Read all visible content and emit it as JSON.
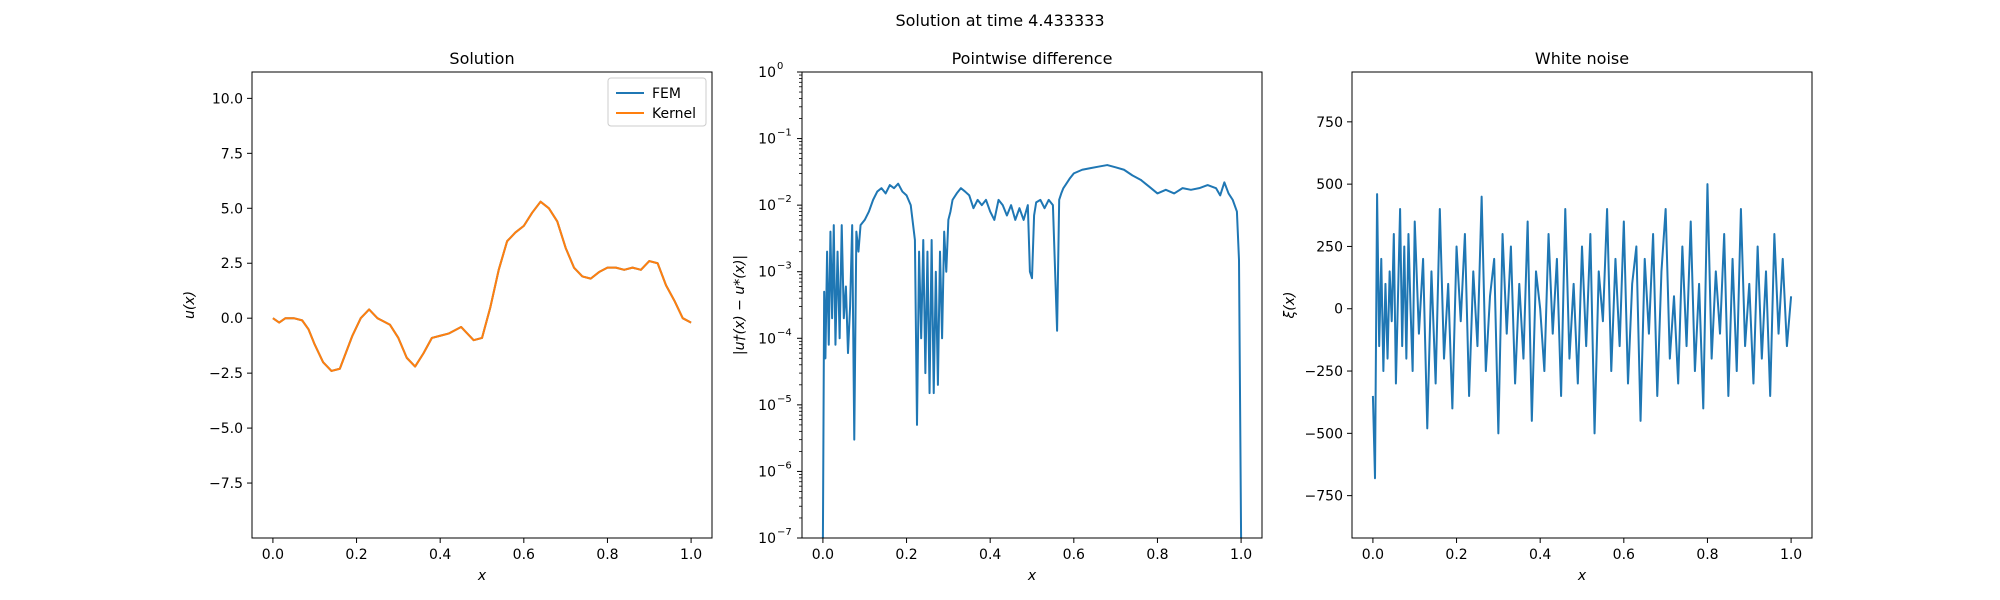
{
  "figure": {
    "suptitle": "Solution at time 4.433333"
  },
  "chart_data": [
    {
      "type": "line",
      "title": "Solution",
      "xlabel": "x",
      "ylabel": "u(x)",
      "xlim": [
        -0.05,
        1.05
      ],
      "ylim": [
        -10.0,
        11.2
      ],
      "xticks": [
        "0.0",
        "0.2",
        "0.4",
        "0.6",
        "0.8",
        "1.0"
      ],
      "xtick_values": [
        0,
        0.2,
        0.4,
        0.6,
        0.8,
        1.0
      ],
      "yticks": [
        "−7.5",
        "−5.0",
        "−2.5",
        "0.0",
        "2.5",
        "5.0",
        "7.5",
        "10.0"
      ],
      "ytick_values": [
        -7.5,
        -5,
        -2.5,
        0,
        2.5,
        5,
        7.5,
        10
      ],
      "legend": "top-right",
      "grid": false,
      "series": [
        {
          "name": "FEM",
          "color": "#1f77b4",
          "x": [
            0.0,
            0.015,
            0.03,
            0.05,
            0.07,
            0.085,
            0.1,
            0.12,
            0.14,
            0.16,
            0.17,
            0.19,
            0.21,
            0.23,
            0.25,
            0.26,
            0.28,
            0.3,
            0.32,
            0.34,
            0.36,
            0.38,
            0.4,
            0.42,
            0.45,
            0.48,
            0.5,
            0.52,
            0.54,
            0.56,
            0.58,
            0.6,
            0.62,
            0.64,
            0.66,
            0.68,
            0.7,
            0.72,
            0.74,
            0.76,
            0.78,
            0.8,
            0.82,
            0.84,
            0.86,
            0.88,
            0.9,
            0.92,
            0.94,
            0.96,
            0.98,
            1.0
          ],
          "y": [
            0.0,
            -0.2,
            0.0,
            0.0,
            -0.1,
            -0.5,
            -1.2,
            -2.0,
            -2.4,
            -2.3,
            -1.8,
            -0.8,
            0.0,
            0.4,
            0.0,
            -0.1,
            -0.3,
            -0.9,
            -1.8,
            -2.2,
            -1.6,
            -0.9,
            -0.8,
            -0.7,
            -0.4,
            -1.0,
            -0.9,
            0.5,
            2.2,
            3.5,
            3.9,
            4.2,
            4.8,
            5.3,
            5.0,
            4.4,
            3.2,
            2.3,
            1.9,
            1.8,
            2.1,
            2.3,
            2.3,
            2.2,
            2.3,
            2.2,
            2.6,
            2.5,
            1.5,
            0.8,
            0.0,
            -0.2
          ]
        },
        {
          "name": "Kernel",
          "color": "#ff7f0e",
          "x": [
            0.0,
            0.015,
            0.03,
            0.05,
            0.07,
            0.085,
            0.1,
            0.12,
            0.14,
            0.16,
            0.17,
            0.19,
            0.21,
            0.23,
            0.25,
            0.26,
            0.28,
            0.3,
            0.32,
            0.34,
            0.36,
            0.38,
            0.4,
            0.42,
            0.45,
            0.48,
            0.5,
            0.52,
            0.54,
            0.56,
            0.58,
            0.6,
            0.62,
            0.64,
            0.66,
            0.68,
            0.7,
            0.72,
            0.74,
            0.76,
            0.78,
            0.8,
            0.82,
            0.84,
            0.86,
            0.88,
            0.9,
            0.92,
            0.94,
            0.96,
            0.98,
            1.0
          ],
          "y": [
            0.0,
            -0.2,
            0.0,
            0.0,
            -0.1,
            -0.5,
            -1.2,
            -2.0,
            -2.4,
            -2.3,
            -1.8,
            -0.8,
            0.0,
            0.4,
            0.0,
            -0.1,
            -0.3,
            -0.9,
            -1.8,
            -2.2,
            -1.6,
            -0.9,
            -0.8,
            -0.7,
            -0.4,
            -1.0,
            -0.9,
            0.5,
            2.2,
            3.5,
            3.9,
            4.2,
            4.8,
            5.3,
            5.0,
            4.4,
            3.2,
            2.3,
            1.9,
            1.8,
            2.1,
            2.3,
            2.3,
            2.2,
            2.3,
            2.2,
            2.6,
            2.5,
            1.5,
            0.8,
            0.0,
            -0.2
          ]
        }
      ]
    },
    {
      "type": "line",
      "title": "Pointwise difference",
      "xlabel": "x",
      "ylabel": "|u†(x) − u*(x)|",
      "yscale": "log",
      "xlim": [
        -0.05,
        1.05
      ],
      "ylim": [
        1e-07,
        1
      ],
      "xticks": [
        "0.0",
        "0.2",
        "0.4",
        "0.6",
        "0.8",
        "1.0"
      ],
      "xtick_values": [
        0,
        0.2,
        0.4,
        0.6,
        0.8,
        1.0
      ],
      "yticks": [
        "10",
        "10",
        "10",
        "10",
        "10",
        "10",
        "10",
        "10"
      ],
      "ytick_exponents": [
        "−7",
        "−6",
        "−5",
        "−4",
        "−3",
        "−2",
        "−1",
        "0"
      ],
      "ytick_values": [
        1e-07,
        1e-06,
        1e-05,
        0.0001,
        0.001,
        0.01,
        0.1,
        1
      ],
      "grid": false,
      "series": [
        {
          "color": "#1f77b4",
          "x": [
            0.0,
            0.003,
            0.006,
            0.01,
            0.014,
            0.018,
            0.022,
            0.026,
            0.03,
            0.035,
            0.04,
            0.045,
            0.05,
            0.055,
            0.06,
            0.065,
            0.07,
            0.075,
            0.08,
            0.085,
            0.09,
            0.1,
            0.11,
            0.12,
            0.13,
            0.14,
            0.15,
            0.16,
            0.17,
            0.18,
            0.19,
            0.2,
            0.21,
            0.22,
            0.225,
            0.23,
            0.235,
            0.24,
            0.245,
            0.25,
            0.255,
            0.26,
            0.265,
            0.27,
            0.275,
            0.28,
            0.285,
            0.29,
            0.295,
            0.3,
            0.305,
            0.31,
            0.32,
            0.33,
            0.34,
            0.35,
            0.36,
            0.37,
            0.38,
            0.39,
            0.4,
            0.41,
            0.42,
            0.43,
            0.44,
            0.45,
            0.46,
            0.47,
            0.48,
            0.49,
            0.495,
            0.5,
            0.505,
            0.51,
            0.52,
            0.53,
            0.54,
            0.55,
            0.56,
            0.565,
            0.57,
            0.575,
            0.58,
            0.59,
            0.6,
            0.62,
            0.64,
            0.66,
            0.68,
            0.7,
            0.72,
            0.74,
            0.76,
            0.78,
            0.8,
            0.82,
            0.84,
            0.86,
            0.88,
            0.9,
            0.92,
            0.94,
            0.95,
            0.96,
            0.97,
            0.98,
            0.99,
            0.995,
            1.0
          ],
          "y": [
            1e-07,
            0.0005,
            5e-05,
            0.002,
            8e-05,
            0.004,
            0.0002,
            0.005,
            8e-05,
            0.002,
            0.0001,
            0.005,
            0.0002,
            0.0006,
            6e-05,
            0.0003,
            0.005,
            3e-06,
            0.004,
            0.002,
            0.005,
            0.006,
            0.008,
            0.012,
            0.016,
            0.018,
            0.015,
            0.02,
            0.018,
            0.021,
            0.016,
            0.014,
            0.01,
            0.003,
            5e-06,
            0.002,
            0.0001,
            0.003,
            3e-05,
            0.002,
            1.5e-05,
            0.003,
            1.5e-05,
            0.001,
            2e-05,
            0.002,
            0.0001,
            0.004,
            0.001,
            0.006,
            0.008,
            0.012,
            0.015,
            0.018,
            0.016,
            0.014,
            0.009,
            0.012,
            0.01,
            0.012,
            0.008,
            0.006,
            0.012,
            0.01,
            0.007,
            0.01,
            0.006,
            0.009,
            0.006,
            0.01,
            0.001,
            0.0008,
            0.007,
            0.011,
            0.012,
            0.009,
            0.012,
            0.01,
            0.00013,
            0.012,
            0.015,
            0.018,
            0.02,
            0.025,
            0.03,
            0.034,
            0.036,
            0.038,
            0.04,
            0.037,
            0.034,
            0.028,
            0.024,
            0.019,
            0.015,
            0.017,
            0.015,
            0.018,
            0.017,
            0.018,
            0.02,
            0.018,
            0.014,
            0.022,
            0.015,
            0.012,
            0.008,
            0.0015,
            1e-07
          ]
        }
      ]
    },
    {
      "type": "line",
      "title": "White noise",
      "xlabel": "x",
      "ylabel": "ξ(x)",
      "xlim": [
        -0.05,
        1.05
      ],
      "ylim": [
        -920,
        950
      ],
      "xticks": [
        "0.0",
        "0.2",
        "0.4",
        "0.6",
        "0.8",
        "1.0"
      ],
      "xtick_values": [
        0,
        0.2,
        0.4,
        0.6,
        0.8,
        1.0
      ],
      "yticks": [
        "−750",
        "−500",
        "−250",
        "0",
        "250",
        "500",
        "750"
      ],
      "ytick_values": [
        -750,
        -500,
        -250,
        0,
        250,
        500,
        750
      ],
      "grid": false,
      "series": [
        {
          "color": "#1f77b4",
          "x": [
            0.0,
            0.005,
            0.01,
            0.015,
            0.02,
            0.025,
            0.03,
            0.035,
            0.04,
            0.045,
            0.05,
            0.055,
            0.06,
            0.065,
            0.07,
            0.075,
            0.08,
            0.085,
            0.09,
            0.095,
            0.1,
            0.11,
            0.12,
            0.13,
            0.14,
            0.15,
            0.16,
            0.17,
            0.18,
            0.19,
            0.2,
            0.21,
            0.22,
            0.23,
            0.24,
            0.25,
            0.26,
            0.27,
            0.28,
            0.29,
            0.3,
            0.31,
            0.32,
            0.33,
            0.34,
            0.35,
            0.36,
            0.37,
            0.38,
            0.39,
            0.4,
            0.41,
            0.42,
            0.43,
            0.44,
            0.45,
            0.46,
            0.47,
            0.48,
            0.49,
            0.5,
            0.51,
            0.52,
            0.53,
            0.54,
            0.55,
            0.56,
            0.57,
            0.58,
            0.59,
            0.6,
            0.61,
            0.62,
            0.63,
            0.64,
            0.65,
            0.66,
            0.67,
            0.68,
            0.69,
            0.7,
            0.71,
            0.72,
            0.73,
            0.74,
            0.75,
            0.76,
            0.77,
            0.78,
            0.79,
            0.8,
            0.81,
            0.82,
            0.83,
            0.84,
            0.85,
            0.86,
            0.87,
            0.88,
            0.89,
            0.9,
            0.91,
            0.92,
            0.93,
            0.94,
            0.95,
            0.96,
            0.97,
            0.98,
            0.99,
            1.0
          ],
          "y": [
            -350,
            -680,
            460,
            -150,
            200,
            -250,
            100,
            -200,
            150,
            -50,
            300,
            -300,
            50,
            400,
            -150,
            250,
            -200,
            300,
            0,
            -250,
            350,
            -100,
            200,
            -480,
            150,
            -300,
            400,
            -200,
            100,
            -400,
            250,
            -50,
            300,
            -350,
            150,
            -150,
            450,
            -250,
            50,
            200,
            -500,
            300,
            -100,
            250,
            -300,
            100,
            -200,
            350,
            -450,
            150,
            0,
            -250,
            300,
            -100,
            200,
            -350,
            400,
            -200,
            100,
            -300,
            250,
            -150,
            300,
            -500,
            150,
            -50,
            400,
            -250,
            200,
            -150,
            350,
            -300,
            100,
            250,
            -450,
            200,
            -100,
            300,
            -350,
            150,
            400,
            -200,
            50,
            -300,
            250,
            -150,
            350,
            -250,
            100,
            -400,
            500,
            -200,
            150,
            -100,
            300,
            -350,
            200,
            -250,
            400,
            -150,
            100,
            -300,
            250,
            -200,
            150,
            -350,
            300,
            -100,
            200,
            -150,
            50
          ]
        }
      ]
    }
  ]
}
